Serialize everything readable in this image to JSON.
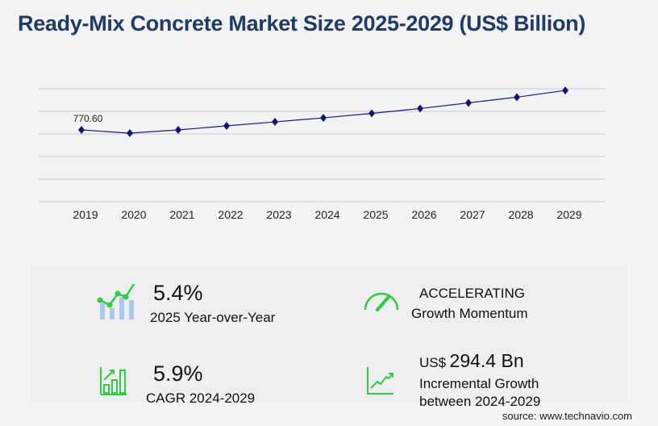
{
  "title": "Ready-Mix Concrete Market Size 2025-2029 (US$ Billion)",
  "chart_data": {
    "type": "line",
    "categories": [
      "2019",
      "2020",
      "2021",
      "2022",
      "2023",
      "2024",
      "2025",
      "2026",
      "2027",
      "2028",
      "2029"
    ],
    "values": [
      770.6,
      736,
      770.6,
      814,
      857,
      900,
      948.6,
      1000,
      1061,
      1122,
      1194.4
    ],
    "data_labels": {
      "0": "770.60"
    },
    "ylim": [
      0,
      1212.5
    ],
    "grid": true,
    "colors": {
      "line": "#1a1a7a",
      "marker": "#14146e",
      "grid": "#c8c8cc"
    }
  },
  "stats": {
    "yoy": {
      "value": "5.4%",
      "label": "2025 Year-over-Year"
    },
    "momentum": {
      "value": "ACCELERATING",
      "label": "Growth Momentum"
    },
    "cagr": {
      "value": "5.9%",
      "label": "CAGR 2024-2029"
    },
    "incremental": {
      "prefix": "US$",
      "value": "294.4 Bn",
      "label1": "Incremental Growth",
      "label2": "between 2024-2029"
    }
  },
  "source": "source: www.technavio.com",
  "colors": {
    "accent": "#2ecc40",
    "title": "#1f3a6b"
  }
}
